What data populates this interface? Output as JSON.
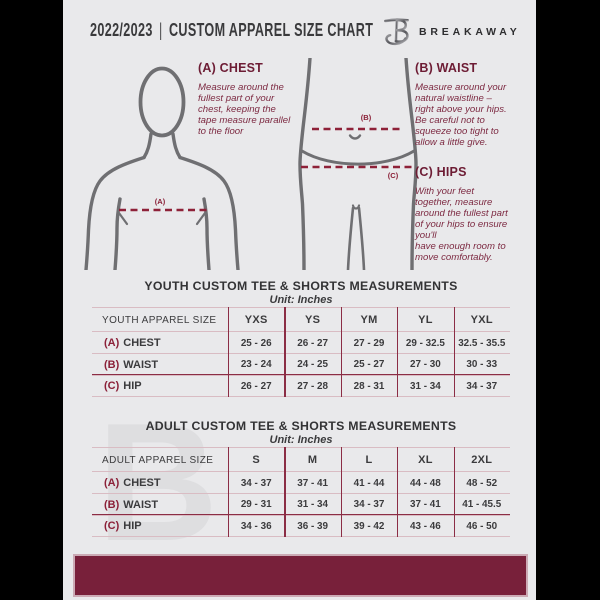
{
  "header": {
    "year": "2022/2023",
    "divider": "|",
    "title": "CUSTOM APPAREL SIZE CHART",
    "brand": "BREAKAWAY"
  },
  "guide": {
    "chest_heading": "(A) CHEST",
    "chest_desc": "Measure around the\nfullest part of your\nchest, keeping the\ntape measure parallel\nto the floor",
    "waist_heading": "(B) WAIST",
    "waist_desc": "Measure around your\nnatural waistline –\nright above your hips.\nBe careful not to\nsqueeze too tight to\nallow a little give.",
    "hips_heading": "(C) HIPS",
    "hips_desc": "With your feet\ntogether, measure\naround the fullest part\nof your hips to ensure\nyou'll\nhave enough room to\nmove comfortably.",
    "marker_a": "(A)",
    "marker_b": "(B)",
    "marker_c": "(C)"
  },
  "youth": {
    "title": "YOUTH CUSTOM TEE & SHORTS MEASUREMENTS",
    "unit": "Unit: Inches",
    "size_label": "YOUTH APPAREL SIZE",
    "sizes": [
      "YXS",
      "YS",
      "YM",
      "YL",
      "YXL"
    ],
    "rows": [
      {
        "prefix": "(A)",
        "label": "CHEST",
        "values": [
          "25 - 26",
          "26 - 27",
          "27 - 29",
          "29 - 32.5",
          "32.5 - 35.5"
        ]
      },
      {
        "prefix": "(B)",
        "label": "WAIST",
        "values": [
          "23 - 24",
          "24 - 25",
          "25 - 27",
          "27 - 30",
          "30 - 33"
        ]
      },
      {
        "prefix": "(C)",
        "label": "HIP",
        "values": [
          "26 - 27",
          "27 - 28",
          "28 - 31",
          "31 - 34",
          "34 - 37"
        ]
      }
    ]
  },
  "adult": {
    "title": "ADULT CUSTOM TEE & SHORTS MEASUREMENTS",
    "unit": "Unit: Inches",
    "size_label": "ADULT APPAREL SIZE",
    "sizes": [
      "S",
      "M",
      "L",
      "XL",
      "2XL"
    ],
    "rows": [
      {
        "prefix": "(A)",
        "label": "CHEST",
        "values": [
          "34 - 37",
          "37 - 41",
          "41 - 44",
          "44 - 48",
          "48 - 52"
        ]
      },
      {
        "prefix": "(B)",
        "label": "WAIST",
        "values": [
          "29 - 31",
          "31 - 34",
          "34 - 37",
          "37 - 41",
          "41 - 45.5"
        ]
      },
      {
        "prefix": "(C)",
        "label": "HIP",
        "values": [
          "34 - 36",
          "36 - 39",
          "39 - 42",
          "43 - 46",
          "46 - 50"
        ]
      }
    ]
  },
  "watermark": "B",
  "colors": {
    "maroon": "#78203a",
    "accent_line": "#8b2d45",
    "heading_maroon": "#6d1c34",
    "charcoal": "#3a3a3c",
    "page_bg": "#e9e9eb",
    "figure_stroke": "#6f6f72"
  }
}
